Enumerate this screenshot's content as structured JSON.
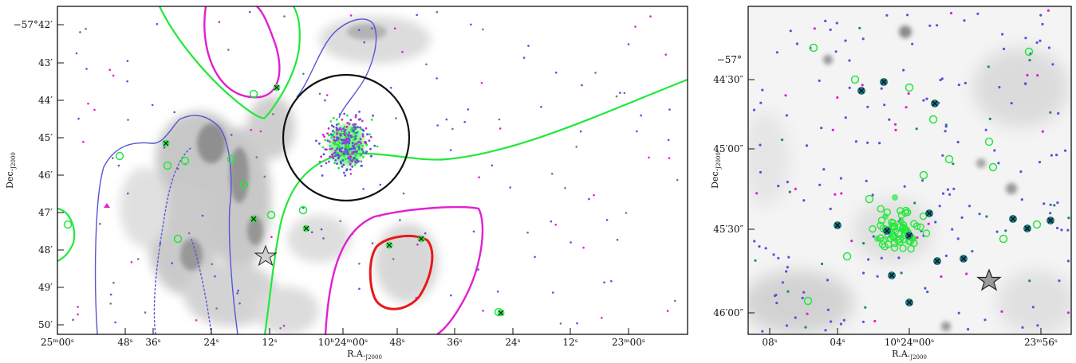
{
  "left_panel": {
    "xlabel": "R.A.",
    "xlabel_sub": "J2000",
    "ylabel": "Dec.",
    "ylabel_sub": "J2000",
    "x_ticks": [
      "25ᵐ00ˢ",
      "48ˢ",
      "36ˢ",
      "24ˢ",
      "12ˢ",
      "10ʰ24ᵐ00ˢ",
      "48ˢ",
      "36ˢ",
      "24ˢ",
      "12ˢ",
      "23ᵐ00ˢ"
    ],
    "y_ticks": [
      "−57°42′",
      "43′",
      "44′",
      "45′",
      "46′",
      "47′",
      "48′",
      "49′",
      "50′"
    ]
  },
  "right_panel": {
    "xlabel": "R.A.",
    "xlabel_sub": "J2000",
    "ylabel": "Dec.",
    "ylabel_sub": "J2000",
    "x_ticks": [
      "08ˢ",
      "04ˢ",
      "10ʰ24ᵐ00ˢ",
      "23ᵐ56ˢ"
    ],
    "y_ticks_top": "−57°",
    "y_ticks": [
      "44′30″",
      "45′00″",
      "45′30″",
      "46′00″"
    ]
  },
  "colors": {
    "green": "#22e83a",
    "magenta": "#e020d0",
    "blue": "#5555d8",
    "red": "#e81818",
    "black": "#111111",
    "nebula": "#8a8a8a"
  }
}
